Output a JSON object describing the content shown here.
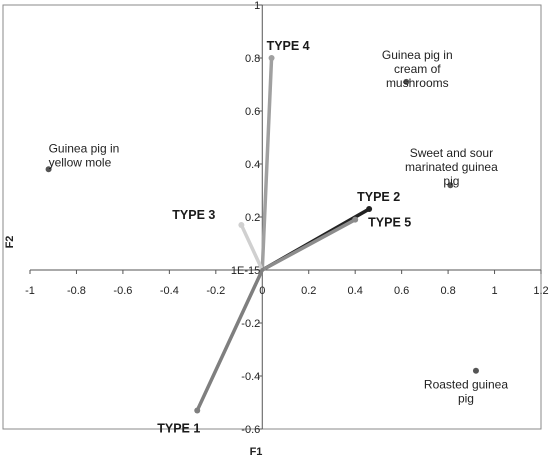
{
  "chart_data": {
    "type": "scatter",
    "xlabel": "F1",
    "ylabel": "F2",
    "xlim": [
      -1,
      1.2
    ],
    "ylim": [
      -0.6,
      1
    ],
    "x_ticks": [
      "-1",
      "-0.8",
      "-0.6",
      "-0.4",
      "-0.2",
      "0",
      "0.2",
      "0.4",
      "0.6",
      "0.8",
      "1",
      "1.2"
    ],
    "y_ticks": [
      "-0.6",
      "-0.4",
      "-0.2",
      "1E-15",
      "0.2",
      "0.4",
      "0.6",
      "0.8",
      "1"
    ],
    "grid": false,
    "vectors": [
      {
        "label": "TYPE 4",
        "x": 0.04,
        "y": 0.8,
        "color": "#a0a0a0"
      },
      {
        "label": "TYPE 3",
        "x": -0.09,
        "y": 0.17,
        "color": "#d0d0d0"
      },
      {
        "label": "TYPE 2",
        "x": 0.46,
        "y": 0.23,
        "color": "#222222"
      },
      {
        "label": "TYPE 5",
        "x": 0.4,
        "y": 0.19,
        "color": "#8c8c8c"
      },
      {
        "label": "TYPE  1",
        "x": -0.28,
        "y": -0.53,
        "color": "#7f7f7f"
      }
    ],
    "observations": [
      {
        "label_lines": [
          "Guinea pig in",
          "yellow mole"
        ],
        "x": -0.92,
        "y": 0.38
      },
      {
        "label_lines": [
          "Guinea pig in",
          "cream of",
          "mushrooms"
        ],
        "x": 0.62,
        "y": 0.71
      },
      {
        "label_lines": [
          "Sweet and sour",
          "marinated guinea",
          "pig"
        ],
        "x": 0.81,
        "y": 0.32
      },
      {
        "label_lines": [
          "Roasted guinea",
          "pig"
        ],
        "x": 0.92,
        "y": -0.38
      }
    ]
  }
}
